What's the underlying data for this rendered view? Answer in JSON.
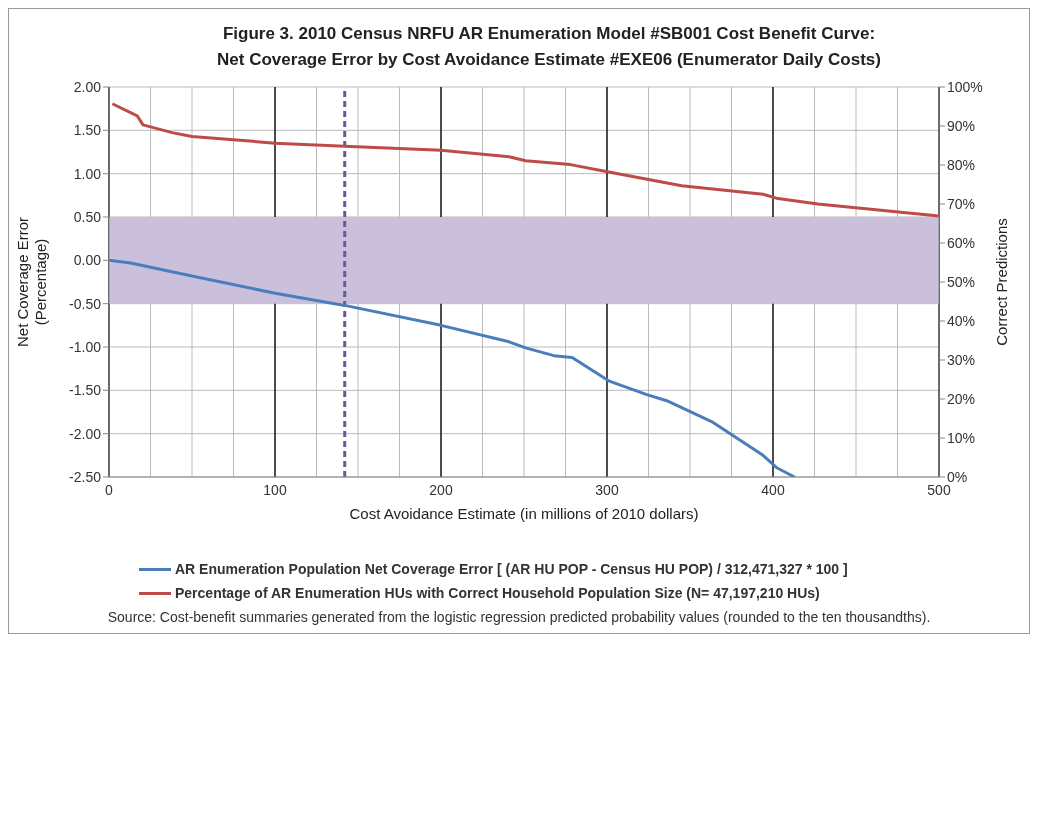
{
  "chart_data": {
    "type": "line",
    "title": "Figure 3.  2010 Census NRFU AR Enumeration Model #SB001 Cost Benefit Curve:\nNet Coverage Error by Cost Avoidance Estimate #EXE06  (Enumerator Daily  Costs)",
    "xlabel": "Cost Avoidance Estimate (in millions of 2010 dollars)",
    "ylabel": "Net Coverage Error\n(Percentage)",
    "y2label": "Correct Predictions",
    "xlim": [
      0,
      500
    ],
    "xticks": [
      0,
      {
        "value": 25,
        "label": null
      },
      {
        "value": 50,
        "label": null
      },
      {
        "value": 75,
        "label": null
      },
      100,
      {
        "value": 125,
        "label": null
      },
      {
        "value": 150,
        "label": null
      },
      {
        "value": 175,
        "label": null
      },
      200,
      {
        "value": 225,
        "label": null
      },
      {
        "value": 250,
        "label": null
      },
      {
        "value": 275,
        "label": null
      },
      300,
      {
        "value": 325,
        "label": null
      },
      {
        "value": 350,
        "label": null
      },
      {
        "value": 375,
        "label": null
      },
      400,
      {
        "value": 425,
        "label": null
      },
      {
        "value": 450,
        "label": null
      },
      {
        "value": 475,
        "label": null
      },
      500
    ],
    "ylim": [
      -2.5,
      2
    ],
    "yticks": [
      {
        "value": 2,
        "label": "2.00"
      },
      {
        "value": 1.5,
        "label": "1.50"
      },
      {
        "value": 1,
        "label": "1.00"
      },
      {
        "value": 0.5,
        "label": "0.50"
      },
      {
        "value": 0,
        "label": "0.00"
      },
      {
        "value": -0.5,
        "label": "-0.50"
      },
      {
        "value": -1,
        "label": "-1.00"
      },
      {
        "value": -1.5,
        "label": "-1.50"
      },
      {
        "value": -2,
        "label": "-2.00"
      },
      {
        "value": -2.5,
        "label": "-2.50"
      }
    ],
    "y2lim": [
      0,
      100
    ],
    "y2ticks": [
      {
        "value": 0,
        "label": "0%"
      },
      {
        "value": 10,
        "label": "10%"
      },
      {
        "value": 20,
        "label": "20%"
      },
      {
        "value": 30,
        "label": "30%"
      },
      {
        "value": 40,
        "label": "40%"
      },
      {
        "value": 50,
        "label": "50%"
      },
      {
        "value": 60,
        "label": "60%"
      },
      {
        "value": 70,
        "label": "70%"
      },
      {
        "value": 80,
        "label": "80%"
      },
      {
        "value": 90,
        "label": "90%"
      },
      {
        "value": 100,
        "label": "100%"
      }
    ],
    "series": [
      {
        "name": "AR Enumeration Population Net Coverage Error [ (AR HU POP - Census HU POP) / 312,471,327 * 100 ]",
        "color": "#4a7ebb",
        "x": [
          0,
          13,
          50,
          100,
          142,
          200,
          241,
          251,
          268,
          279,
          301,
          324,
          336,
          363,
          394,
          402,
          413
        ],
        "values": [
          0,
          -0.03,
          -0.18,
          -0.38,
          -0.52,
          -0.75,
          -0.94,
          -1.01,
          -1.1,
          -1.12,
          -1.39,
          -1.55,
          -1.62,
          -1.86,
          -2.25,
          -2.39,
          -2.5
        ]
      },
      {
        "name": "Percentage of AR Enumeration HUs with Correct Household Population Size (N= 47,197,210 HUs)",
        "color": "#be4b48",
        "axis": "y2",
        "x": [
          2,
          17,
          20.5,
          38,
          50,
          75,
          100,
          142,
          200,
          241,
          251,
          278,
          301,
          345,
          394,
          402,
          427,
          500
        ],
        "values": [
          95.7,
          92.6,
          90.3,
          88.3,
          87.3,
          86.5,
          85.6,
          84.8,
          83.8,
          82.1,
          81.1,
          80.1,
          78.2,
          74.7,
          72.5,
          71.5,
          70,
          66.9
        ]
      }
    ],
    "bands": [
      {
        "axis": "y",
        "from": -0.5,
        "to": 0.5,
        "color": "#cbc0dc"
      }
    ],
    "ref_lines": [
      {
        "axis": "x",
        "value": 142,
        "color": "#6f559a",
        "line_style": "dashed"
      }
    ],
    "annotations": [
      "Source: Cost-benefit summaries generated from the logistic regression predicted probability values (rounded to the ten thousandths)."
    ],
    "grid": true,
    "legend": "bottom",
    "marker": "none",
    "line_style": "solid"
  }
}
